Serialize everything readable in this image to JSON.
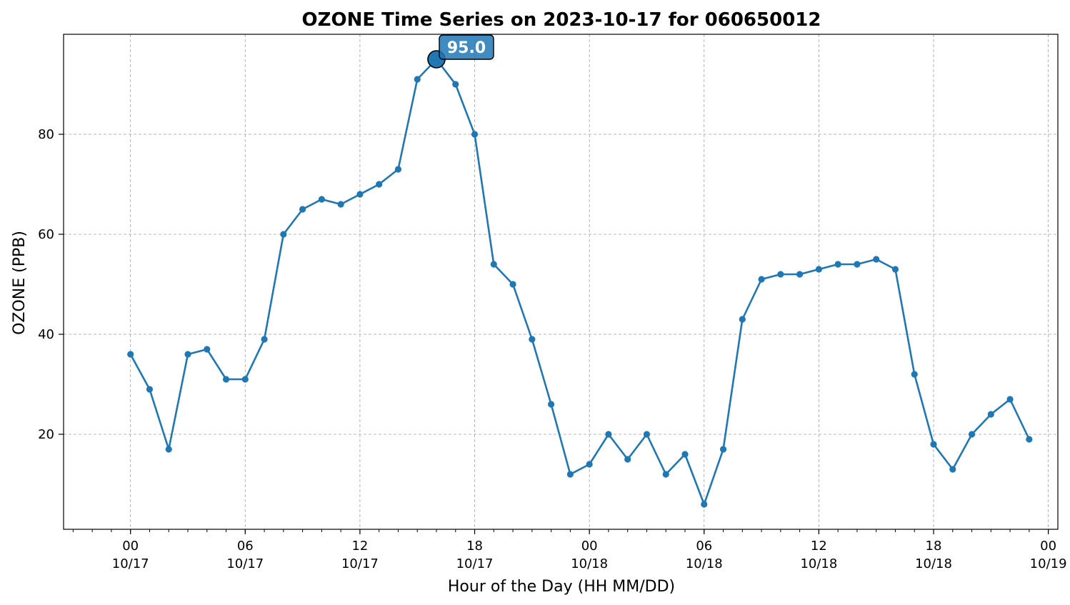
{
  "chart_data": {
    "type": "line",
    "title": "OZONE Time Series on 2023-10-17 for 060650012",
    "xlabel": "Hour of the Day (HH MM/DD)",
    "ylabel": "OZONE (PPB)",
    "xlim": [
      "2023-10-16 20:30",
      "2023-10-19 00:30"
    ],
    "ylim": [
      1,
      100
    ],
    "yticks": [
      20,
      40,
      60,
      80
    ],
    "xticks": [
      {
        "time": "2023-10-17 00:00",
        "hour": "00",
        "date": "10/17"
      },
      {
        "time": "2023-10-17 06:00",
        "hour": "06",
        "date": "10/17"
      },
      {
        "time": "2023-10-17 12:00",
        "hour": "12",
        "date": "10/17"
      },
      {
        "time": "2023-10-17 18:00",
        "hour": "18",
        "date": "10/17"
      },
      {
        "time": "2023-10-18 00:00",
        "hour": "00",
        "date": "10/18"
      },
      {
        "time": "2023-10-18 06:00",
        "hour": "06",
        "date": "10/18"
      },
      {
        "time": "2023-10-18 12:00",
        "hour": "12",
        "date": "10/18"
      },
      {
        "time": "2023-10-18 18:00",
        "hour": "18",
        "date": "10/18"
      },
      {
        "time": "2023-10-19 00:00",
        "hour": "00",
        "date": "10/19"
      }
    ],
    "grid": true,
    "series": [
      {
        "color": "#1f77b4",
        "x": [
          "2023-10-17 00:00",
          "2023-10-17 01:00",
          "2023-10-17 02:00",
          "2023-10-17 03:00",
          "2023-10-17 04:00",
          "2023-10-17 05:00",
          "2023-10-17 06:00",
          "2023-10-17 07:00",
          "2023-10-17 08:00",
          "2023-10-17 09:00",
          "2023-10-17 10:00",
          "2023-10-17 11:00",
          "2023-10-17 12:00",
          "2023-10-17 13:00",
          "2023-10-17 14:00",
          "2023-10-17 15:00",
          "2023-10-17 16:00",
          "2023-10-17 17:00",
          "2023-10-17 18:00",
          "2023-10-17 19:00",
          "2023-10-17 20:00",
          "2023-10-17 21:00",
          "2023-10-17 22:00",
          "2023-10-17 23:00",
          "2023-10-18 00:00",
          "2023-10-18 01:00",
          "2023-10-18 02:00",
          "2023-10-18 03:00",
          "2023-10-18 04:00",
          "2023-10-18 05:00",
          "2023-10-18 06:00",
          "2023-10-18 07:00",
          "2023-10-18 08:00",
          "2023-10-18 09:00",
          "2023-10-18 10:00",
          "2023-10-18 11:00",
          "2023-10-18 12:00",
          "2023-10-18 13:00",
          "2023-10-18 14:00",
          "2023-10-18 15:00",
          "2023-10-18 16:00",
          "2023-10-18 17:00",
          "2023-10-18 18:00",
          "2023-10-18 19:00",
          "2023-10-18 20:00",
          "2023-10-18 21:00",
          "2023-10-18 22:00",
          "2023-10-18 23:00"
        ],
        "y": [
          36,
          29,
          17,
          36,
          37,
          31,
          31,
          39,
          60,
          65,
          67,
          66,
          68,
          70,
          73,
          91,
          95,
          90,
          80,
          54,
          50,
          39,
          26,
          12,
          14,
          20,
          15,
          20,
          12,
          16,
          6,
          17,
          43,
          51,
          52,
          52,
          53,
          54,
          54,
          55,
          53,
          32,
          18,
          13,
          20,
          24,
          27,
          19
        ]
      }
    ],
    "annotation": {
      "text": "95.0",
      "time": "2023-10-17 16:00",
      "value": 95,
      "box_color": "#1f77b4"
    }
  }
}
